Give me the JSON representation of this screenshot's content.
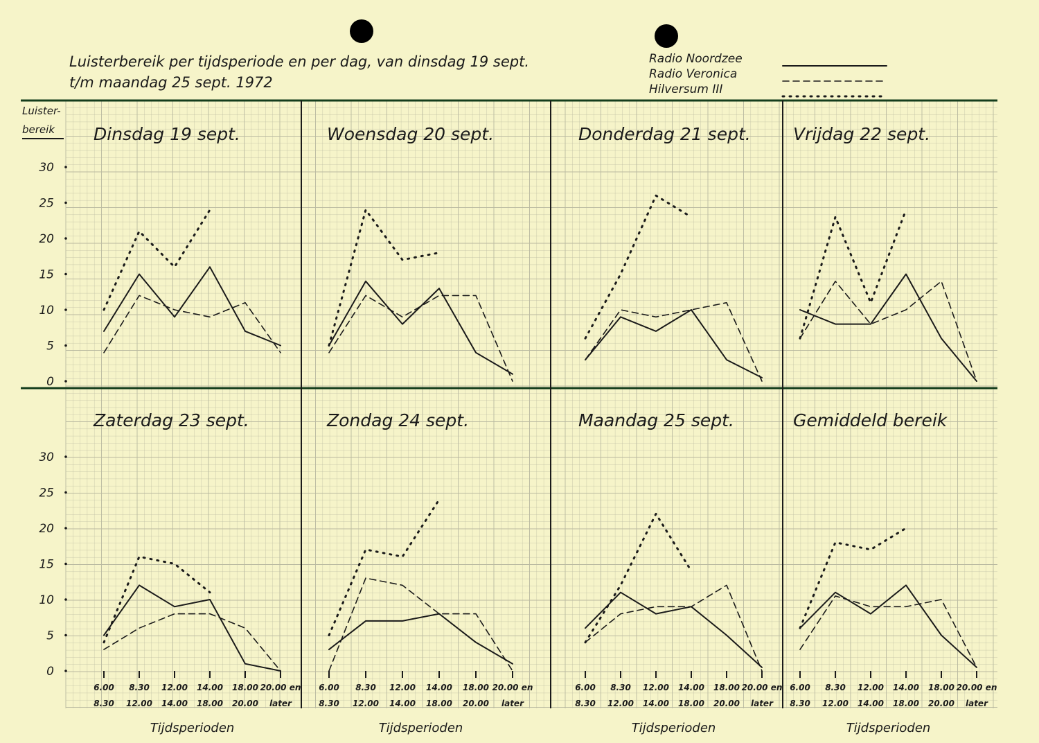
{
  "title_line1": "Luisterbereik per tijdsperiode en per dag, van dinsdag 19 sept.",
  "title_line2": "t/m maandag 25 sept. 1972",
  "legend": [
    {
      "name": "Radio Noordzee",
      "style": "solid"
    },
    {
      "name": "Radio Veronica",
      "style": "dashed"
    },
    {
      "name": "Hilversum III",
      "style": "dotted"
    }
  ],
  "colors": {
    "paper": "#f6f4c9",
    "ink": "#1a1a1a",
    "grid": "#b9b9a0"
  },
  "chart_data": {
    "type": "line",
    "ylabel": "Luister-bereik",
    "xlabel": "Tijdsperioden",
    "ylim": [
      0,
      30
    ],
    "yticks": [
      0,
      5,
      10,
      15,
      20,
      25,
      30
    ],
    "grid": true,
    "legend_position": "top-right",
    "categories": [
      [
        "6.00",
        "8.30"
      ],
      [
        "8.30",
        "12.00"
      ],
      [
        "12.00",
        "14.00"
      ],
      [
        "14.00",
        "18.00"
      ],
      [
        "18.00",
        "20.00"
      ],
      [
        "20.00 en",
        "later"
      ]
    ],
    "panels": [
      {
        "title": "Dinsdag 19 sept.",
        "series": [
          {
            "name": "Radio Noordzee",
            "values": [
              7,
              15,
              9,
              16,
              7,
              5
            ]
          },
          {
            "name": "Radio Veronica",
            "values": [
              4,
              12,
              10,
              9,
              11,
              4
            ]
          },
          {
            "name": "Hilversum III",
            "values": [
              10,
              21,
              16,
              24
            ]
          }
        ]
      },
      {
        "title": "Woensdag 20 sept.",
        "series": [
          {
            "name": "Radio Noordzee",
            "values": [
              5,
              14,
              8,
              13,
              4,
              1
            ]
          },
          {
            "name": "Radio Veronica",
            "values": [
              4,
              12,
              9,
              12,
              12,
              0
            ]
          },
          {
            "name": "Hilversum III",
            "values": [
              5,
              24,
              17,
              18
            ]
          }
        ]
      },
      {
        "title": "Donderdag 21 sept.",
        "series": [
          {
            "name": "Radio Noordzee",
            "values": [
              3,
              9,
              7,
              10,
              3,
              0.5
            ]
          },
          {
            "name": "Radio Veronica",
            "values": [
              3,
              10,
              9,
              10,
              11,
              0
            ]
          },
          {
            "name": "Hilversum III",
            "values": [
              6,
              15,
              26,
              23
            ]
          }
        ]
      },
      {
        "title": "Vrijdag 22 sept.",
        "series": [
          {
            "name": "Radio Noordzee",
            "values": [
              10,
              8,
              8,
              15,
              6,
              0
            ]
          },
          {
            "name": "Radio Veronica",
            "values": [
              6,
              14,
              8,
              10,
              14,
              0
            ]
          },
          {
            "name": "Hilversum III",
            "values": [
              6,
              23,
              11,
              24
            ]
          }
        ]
      },
      {
        "title": "Zaterdag 23 sept.",
        "series": [
          {
            "name": "Radio Noordzee",
            "values": [
              5,
              12,
              9,
              10,
              1,
              0
            ]
          },
          {
            "name": "Radio Veronica",
            "values": [
              3,
              6,
              8,
              8,
              6,
              0
            ]
          },
          {
            "name": "Hilversum III",
            "values": [
              4,
              16,
              15,
              11
            ]
          }
        ]
      },
      {
        "title": "Zondag 24 sept.",
        "series": [
          {
            "name": "Radio Noordzee",
            "values": [
              3,
              7,
              7,
              8,
              4,
              1
            ]
          },
          {
            "name": "Radio Veronica",
            "values": [
              0,
              13,
              12,
              8,
              8,
              0
            ]
          },
          {
            "name": "Hilversum III",
            "values": [
              5,
              17,
              16,
              24
            ]
          }
        ]
      },
      {
        "title": "Maandag 25 sept.",
        "series": [
          {
            "name": "Radio Noordzee",
            "values": [
              6,
              11,
              8,
              9,
              5,
              0.5
            ]
          },
          {
            "name": "Radio Veronica",
            "values": [
              4,
              8,
              9,
              9,
              12,
              0
            ]
          },
          {
            "name": "Hilversum III",
            "values": [
              4,
              12,
              22,
              14
            ]
          }
        ]
      },
      {
        "title": "Gemiddeld bereik",
        "series": [
          {
            "name": "Radio Noordzee",
            "values": [
              6,
              11,
              8,
              12,
              5,
              0.5
            ]
          },
          {
            "name": "Radio Veronica",
            "values": [
              3,
              10.5,
              9,
              9,
              10,
              0.5
            ]
          },
          {
            "name": "Hilversum III",
            "values": [
              6,
              18,
              17,
              20
            ]
          }
        ]
      }
    ]
  }
}
